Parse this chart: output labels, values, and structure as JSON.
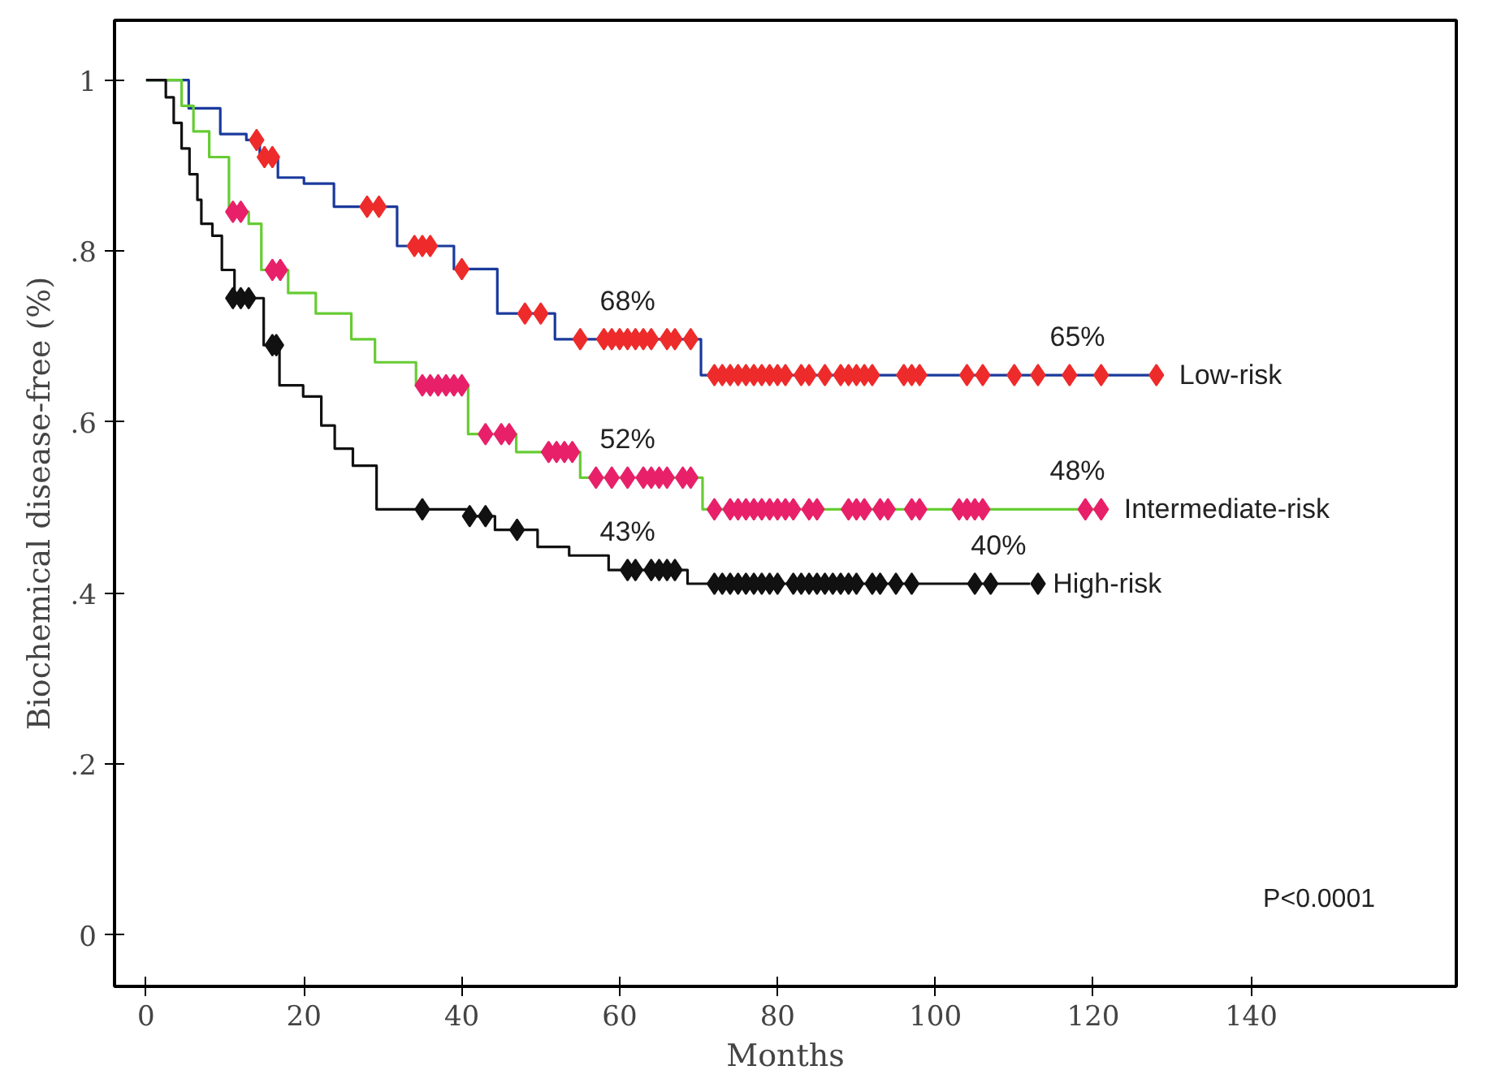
{
  "chart_data": {
    "type": "step",
    "xlabel": "Months",
    "ylabel": "Biochemical disease-free (%)",
    "xlim": [
      -4,
      166
    ],
    "ylim": [
      -0.06,
      1.07
    ],
    "xticks": [
      0,
      20,
      40,
      60,
      80,
      100,
      120,
      140
    ],
    "yticks": [
      0,
      {
        "value": 0.2,
        "label": ".2"
      },
      {
        "value": 0.4,
        "label": ".4"
      },
      {
        "value": 0.6,
        "label": ".6"
      },
      {
        "value": 0.8,
        "label": ".8"
      },
      1
    ],
    "grid": false,
    "series": [
      {
        "name": "Low-risk",
        "color": "#1a3a9c",
        "x": [
          0,
          5.4,
          9.4,
          12.7,
          14.4,
          16.7,
          20,
          23.8,
          31.8,
          39,
          44.5,
          51.8,
          70.3,
          128
        ],
        "values": [
          1,
          0.967,
          0.937,
          0.93,
          0.91,
          0.886,
          0.879,
          0.852,
          0.806,
          0.779,
          0.727,
          0.697,
          0.655,
          0.655
        ]
      },
      {
        "name": "Intermediate-risk",
        "color": "#66cc33",
        "x": [
          0,
          4.5,
          6,
          8,
          10.5,
          13,
          14.6,
          18,
          21.5,
          26,
          29,
          34.2,
          40.8,
          46.9,
          55,
          70.5,
          121
        ],
        "values": [
          1,
          0.97,
          0.94,
          0.91,
          0.846,
          0.832,
          0.778,
          0.751,
          0.727,
          0.697,
          0.67,
          0.643,
          0.586,
          0.565,
          0.535,
          0.498,
          0.498
        ]
      },
      {
        "name": "High-risk",
        "color": "#111111",
        "x": [
          0,
          2.5,
          3.5,
          4.5,
          5.5,
          6.5,
          7,
          8.4,
          9.6,
          11.2,
          14.9,
          16.9,
          19.9,
          22.2,
          23.9,
          26.2,
          29.2,
          40.9,
          44.2,
          49.6,
          53.6,
          58.6,
          68.6,
          112
        ],
        "values": [
          1,
          0.98,
          0.95,
          0.92,
          0.89,
          0.86,
          0.832,
          0.818,
          0.778,
          0.745,
          0.69,
          0.643,
          0.63,
          0.596,
          0.569,
          0.549,
          0.498,
          0.49,
          0.474,
          0.454,
          0.444,
          0.427,
          0.411,
          0.411
        ]
      },
      {
        "type": "scatter",
        "marker": "diamond",
        "color": "#ee2b2b",
        "x": [
          14,
          15,
          16,
          28,
          29.5,
          34,
          35,
          36,
          40,
          48,
          50,
          55,
          58,
          59,
          60,
          61,
          62,
          63,
          64,
          66,
          67,
          69,
          72,
          73,
          74,
          75,
          76,
          77,
          78,
          79,
          80,
          81,
          83,
          84,
          86,
          88,
          89,
          90,
          91,
          92,
          96,
          97,
          98,
          104,
          106,
          110,
          113,
          117,
          121,
          128
        ],
        "values": [
          0.93,
          0.91,
          0.91,
          0.852,
          0.852,
          0.806,
          0.806,
          0.806,
          0.779,
          0.727,
          0.727,
          0.697,
          0.697,
          0.697,
          0.697,
          0.697,
          0.697,
          0.697,
          0.697,
          0.697,
          0.697,
          0.697,
          0.655,
          0.655,
          0.655,
          0.655,
          0.655,
          0.655,
          0.655,
          0.655,
          0.655,
          0.655,
          0.655,
          0.655,
          0.655,
          0.655,
          0.655,
          0.655,
          0.655,
          0.655,
          0.655,
          0.655,
          0.655,
          0.655,
          0.655,
          0.655,
          0.655,
          0.655,
          0.655,
          0.655
        ]
      },
      {
        "type": "scatter",
        "marker": "diamond",
        "color": "#e8206a",
        "x": [
          11,
          12,
          16,
          17,
          35,
          36,
          37,
          38,
          39,
          40,
          43,
          45,
          46,
          51,
          52,
          53,
          54,
          57,
          59,
          61,
          63,
          64,
          65,
          66,
          68,
          69,
          72,
          74,
          75,
          76,
          77,
          78,
          79,
          80,
          81,
          82,
          84,
          85,
          89,
          90,
          91,
          93,
          94,
          97,
          98,
          103,
          104,
          105,
          106,
          119,
          121
        ],
        "values": [
          0.846,
          0.846,
          0.778,
          0.778,
          0.643,
          0.643,
          0.643,
          0.643,
          0.643,
          0.643,
          0.586,
          0.586,
          0.586,
          0.565,
          0.565,
          0.565,
          0.565,
          0.535,
          0.535,
          0.535,
          0.535,
          0.535,
          0.535,
          0.535,
          0.535,
          0.535,
          0.498,
          0.498,
          0.498,
          0.498,
          0.498,
          0.498,
          0.498,
          0.498,
          0.498,
          0.498,
          0.498,
          0.498,
          0.498,
          0.498,
          0.498,
          0.498,
          0.498,
          0.498,
          0.498,
          0.498,
          0.498,
          0.498,
          0.498,
          0.498,
          0.498
        ]
      },
      {
        "type": "scatter",
        "marker": "diamond",
        "color": "#111111",
        "x": [
          11,
          12,
          13,
          16,
          16.5,
          35,
          41,
          43,
          47,
          61,
          62,
          64,
          65,
          66,
          67,
          72,
          73,
          74,
          75,
          76,
          77,
          78,
          79,
          80,
          82,
          83,
          84,
          85,
          86,
          87,
          88,
          89,
          90,
          92,
          93,
          95,
          97,
          105,
          107,
          113
        ],
        "values": [
          0.745,
          0.745,
          0.745,
          0.69,
          0.69,
          0.498,
          0.49,
          0.49,
          0.474,
          0.427,
          0.427,
          0.427,
          0.427,
          0.427,
          0.427,
          0.411,
          0.411,
          0.411,
          0.411,
          0.411,
          0.411,
          0.411,
          0.411,
          0.411,
          0.411,
          0.411,
          0.411,
          0.411,
          0.411,
          0.411,
          0.411,
          0.411,
          0.411,
          0.411,
          0.411,
          0.411,
          0.411,
          0.411,
          0.411,
          0.411
        ]
      }
    ],
    "annotations": [
      {
        "text": "68%",
        "x": 61,
        "y": 0.697
      },
      {
        "text": "65%",
        "x": 118,
        "y": 0.655
      },
      {
        "text": "52%",
        "x": 61,
        "y": 0.535
      },
      {
        "text": "48%",
        "x": 118,
        "y": 0.498
      },
      {
        "text": "43%",
        "x": 61,
        "y": 0.427
      },
      {
        "text": "40%",
        "x": 108,
        "y": 0.411
      },
      "P<0.0001"
    ]
  }
}
